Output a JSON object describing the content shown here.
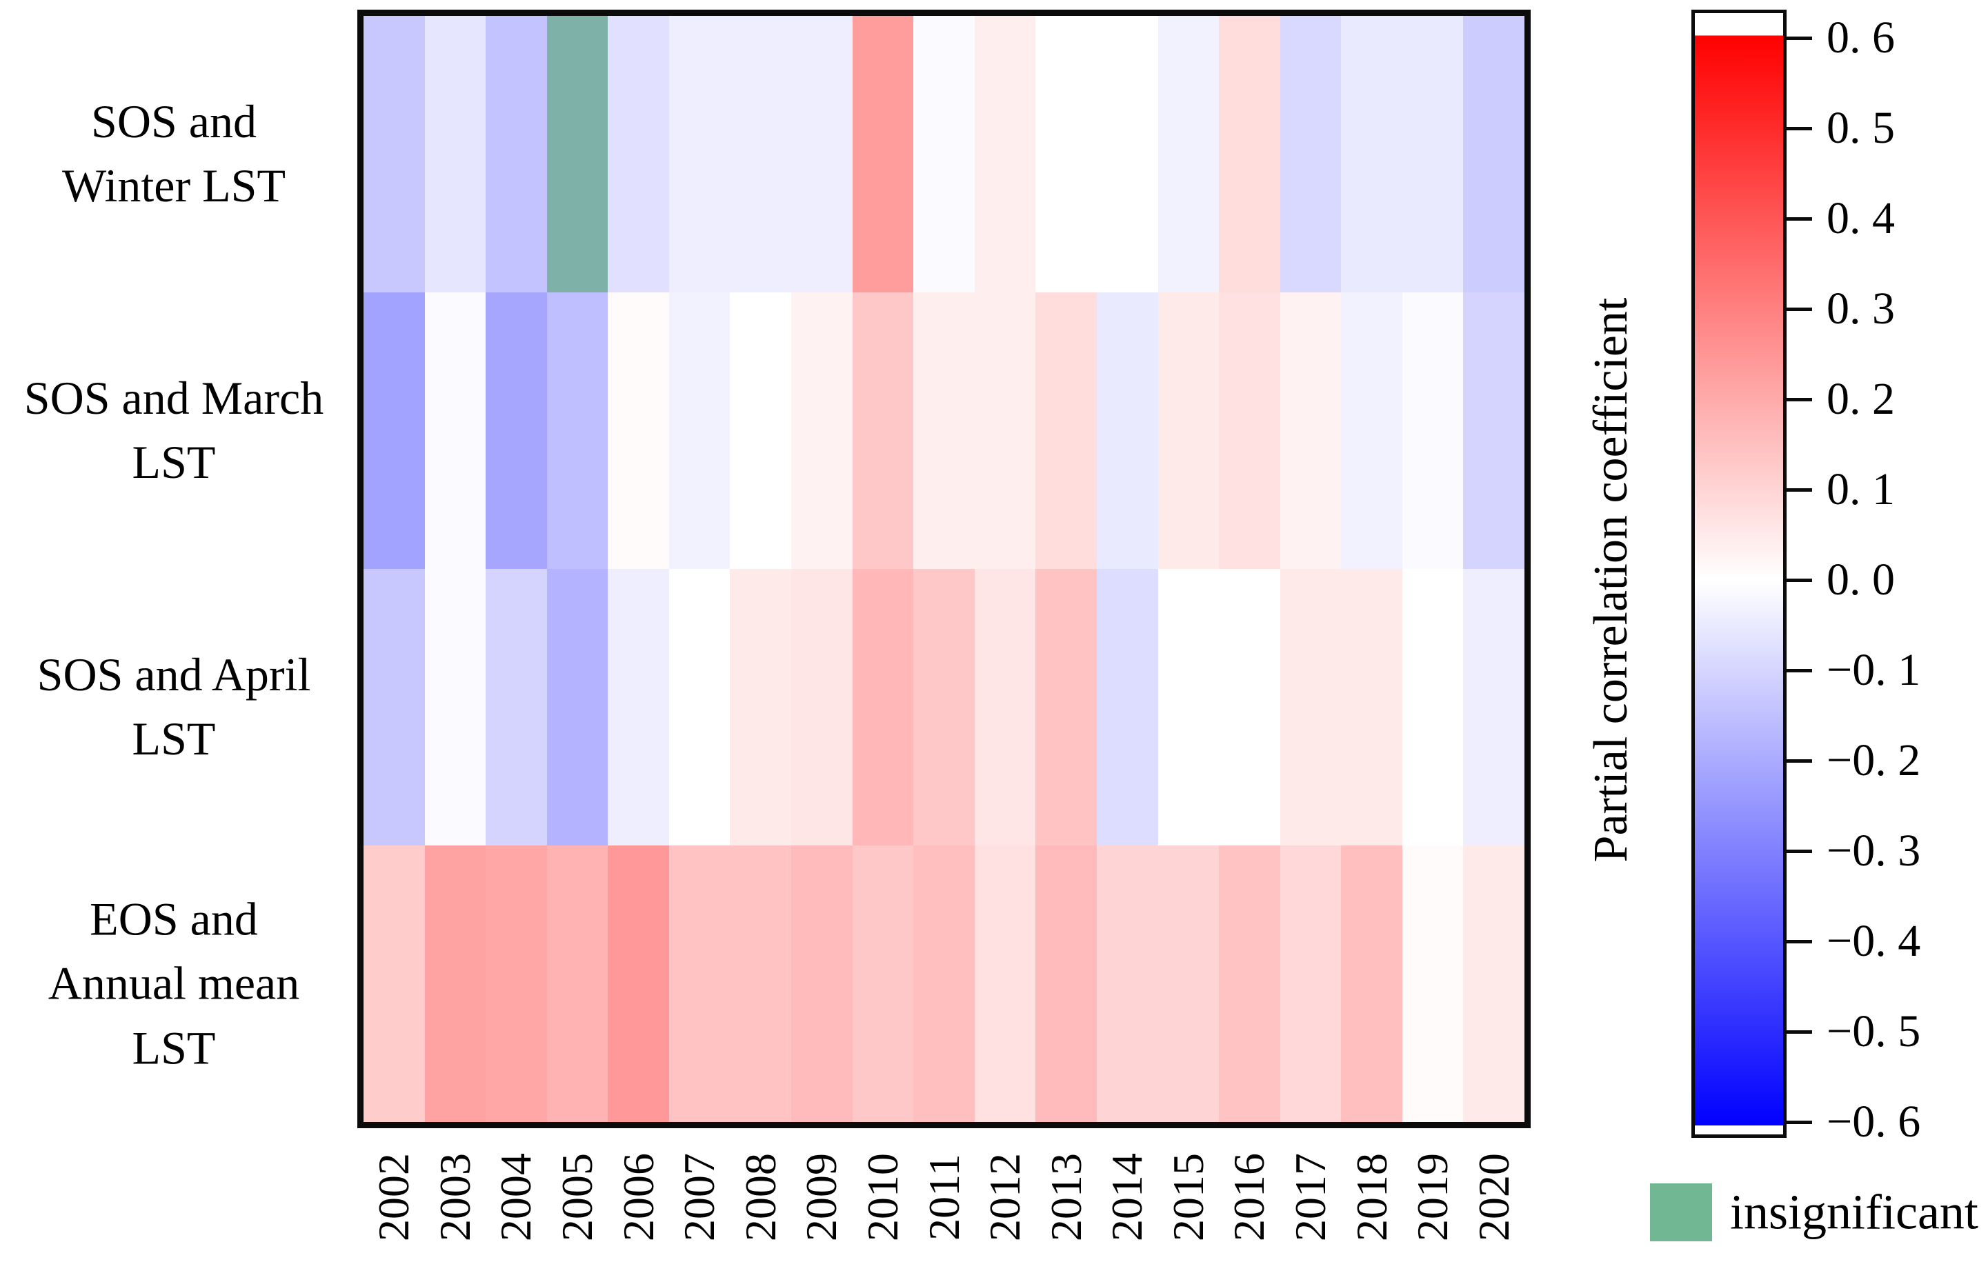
{
  "chart_data": {
    "type": "heatmap",
    "title": "",
    "xlabel": "",
    "ylabel": "",
    "x": [
      "2002",
      "2003",
      "2004",
      "2005",
      "2006",
      "2007",
      "2008",
      "2009",
      "2010",
      "2011",
      "2012",
      "2013",
      "2014",
      "2015",
      "2016",
      "2017",
      "2018",
      "2019",
      "2020"
    ],
    "rows": [
      {
        "name": "SOS and Winter LST",
        "label_lines": [
          "SOS and",
          "Winter LST"
        ],
        "values": [
          -0.13,
          -0.06,
          -0.14,
          null,
          -0.07,
          -0.04,
          -0.04,
          -0.04,
          0.23,
          -0.01,
          0.04,
          0.0,
          0.0,
          -0.03,
          0.08,
          -0.09,
          -0.05,
          -0.05,
          -0.12
        ]
      },
      {
        "name": "SOS and March LST",
        "label_lines": [
          "SOS and March",
          "LST"
        ],
        "values": [
          -0.22,
          -0.01,
          -0.21,
          -0.15,
          0.01,
          -0.03,
          0.0,
          0.03,
          0.13,
          0.04,
          0.04,
          0.08,
          -0.05,
          0.05,
          0.07,
          0.03,
          -0.03,
          -0.01,
          -0.1
        ]
      },
      {
        "name": "SOS and April LST",
        "label_lines": [
          "SOS and April",
          "LST"
        ],
        "values": [
          -0.13,
          -0.01,
          -0.1,
          -0.18,
          -0.04,
          0.0,
          0.05,
          0.06,
          0.17,
          0.13,
          0.06,
          0.14,
          -0.08,
          0.0,
          0.0,
          0.05,
          0.05,
          0.0,
          -0.04
        ]
      },
      {
        "name": "EOS and Annual mean LST",
        "label_lines": [
          "EOS and",
          "Annual mean",
          "LST"
        ],
        "values": [
          0.12,
          0.22,
          0.21,
          0.18,
          0.24,
          0.14,
          0.14,
          0.16,
          0.13,
          0.15,
          0.07,
          0.16,
          0.1,
          0.1,
          0.14,
          0.09,
          0.15,
          0.01,
          0.05
        ]
      }
    ],
    "value_range": [
      -0.6,
      0.6
    ],
    "insignificant_cell_color": "#7eb1a7",
    "grid": false,
    "legend_position": "bottom-right"
  },
  "colorbar": {
    "label": "Partial correlation coefficient",
    "tick_labels": [
      "0. 6",
      "0. 5",
      "0. 4",
      "0. 3",
      "0. 2",
      "0. 1",
      "0. 0",
      "−0. 1",
      "−0. 2",
      "−0. 3",
      "−0. 4",
      "−0. 5",
      "−0. 6"
    ],
    "tick_values": [
      0.6,
      0.5,
      0.4,
      0.3,
      0.2,
      0.1,
      0.0,
      -0.1,
      -0.2,
      -0.3,
      -0.4,
      -0.5,
      -0.6
    ],
    "top_color": "#ff0000",
    "mid_color": "#ffffff",
    "bottom_color": "#0000ff"
  },
  "legend": {
    "swatch_color": "#72b794",
    "label": "insignificant"
  }
}
